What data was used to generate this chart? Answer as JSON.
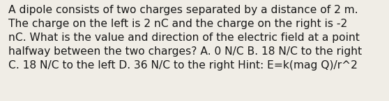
{
  "text": "A dipole consists of two charges separated by a distance of 2 m.\nThe charge on the left is 2 nC and the charge on the right is -2\nnC. What is the value and direction of the electric field at a point\nhalfway between the two charges? A. 0 N/C B. 18 N/C to the right\nC. 18 N/C to the left D. 36 N/C to the right Hint: E=k(mag Q)/r^2",
  "background_color": "#f0ede6",
  "text_color": "#1a1a1a",
  "font_size": 11.2,
  "fig_width": 5.58,
  "fig_height": 1.46,
  "dpi": 100
}
